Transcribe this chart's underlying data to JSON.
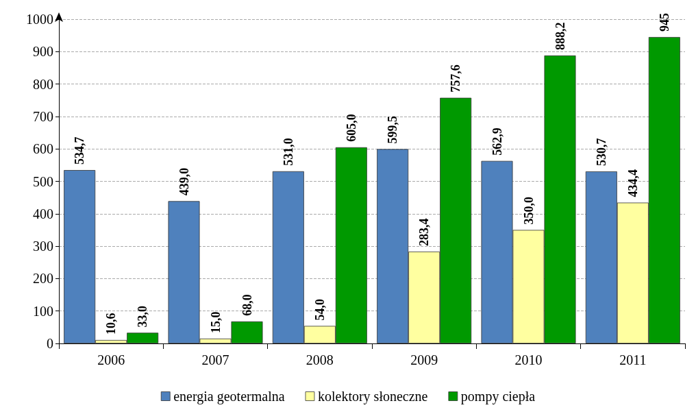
{
  "chart_data": {
    "type": "bar",
    "categories": [
      "2006",
      "2007",
      "2008",
      "2009",
      "2010",
      "2011"
    ],
    "series": [
      {
        "name": "energia geotermalna",
        "color": "#4f81bd",
        "values": [
          534.7,
          439.0,
          531.0,
          599.5,
          562.9,
          530.7
        ],
        "value_labels": [
          "534,7",
          "439,0",
          "531,0",
          "599,5",
          "562,9",
          "530,7"
        ]
      },
      {
        "name": "kolektory słoneczne",
        "color": "#ffffa0",
        "values": [
          10.6,
          15.0,
          54.0,
          283.4,
          350.0,
          434.4
        ],
        "value_labels": [
          "10,6",
          "15,0",
          "54,0",
          "283,4",
          "350,0",
          "434,4"
        ]
      },
      {
        "name": "pompy ciepła",
        "color": "#009900",
        "values": [
          33.0,
          68.0,
          605.0,
          757.6,
          888.2,
          945
        ],
        "value_labels": [
          "33,0",
          "68,0",
          "605,0",
          "757,6",
          "888,2",
          "945"
        ]
      }
    ],
    "ylim": [
      0,
      1000
    ],
    "yticks": [
      0,
      100,
      200,
      300,
      400,
      500,
      600,
      700,
      800,
      900,
      1000
    ],
    "grid": "y",
    "legend": "bottom"
  }
}
